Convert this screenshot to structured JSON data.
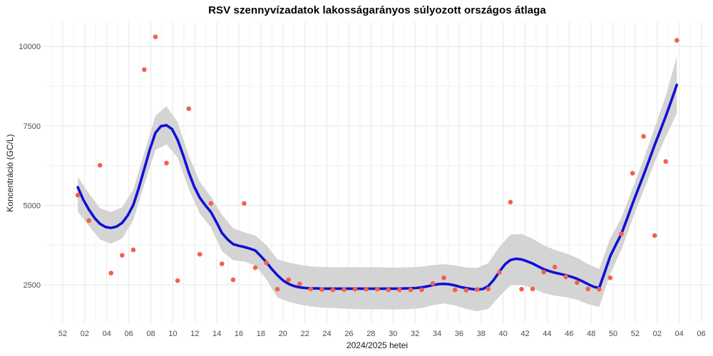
{
  "header": {
    "title": "RSV szennyvízadatok lakosságarányos súlyozott országos átlaga"
  },
  "chart_data": {
    "type": "scatter",
    "title": "RSV szennyvízadatok lakosságarányos súlyozott országos átlaga",
    "xlabel": "2024/2025 hetei",
    "ylabel": "Koncentráció (GC/L)",
    "legend": "none",
    "grid": "on",
    "x_tick_labels": [
      "52",
      "02",
      "04",
      "06",
      "08",
      "10",
      "12",
      "14",
      "16",
      "18",
      "20",
      "22",
      "24",
      "26",
      "28",
      "30",
      "32",
      "34",
      "36",
      "38",
      "40",
      "42",
      "44",
      "46",
      "48",
      "50",
      "52",
      "02",
      "04",
      "06"
    ],
    "y_ticks": [
      2500,
      5000,
      7500,
      10000
    ],
    "y_tick_labels": [
      "2500",
      "5000",
      "7500",
      "10000"
    ],
    "y_minor_ticks": [
      3750,
      6250,
      8750
    ],
    "ylim": [
      1250,
      10750
    ],
    "points": {
      "week_label": [
        "01",
        "02",
        "03",
        "04",
        "05",
        "06",
        "07",
        "08",
        "09",
        "10",
        "11",
        "12",
        "13",
        "14",
        "15",
        "16",
        "17",
        "18",
        "19",
        "20",
        "21",
        "22",
        "23",
        "24",
        "25",
        "26",
        "27",
        "28",
        "29",
        "30",
        "31",
        "32",
        "33",
        "34",
        "35",
        "36",
        "37",
        "38",
        "39",
        "40",
        "41",
        "42",
        "43",
        "44",
        "45",
        "46",
        "47",
        "48",
        "49",
        "50",
        "51",
        "52",
        "01",
        "02",
        "03"
      ],
      "offset": [
        1,
        2,
        3,
        4,
        5,
        6,
        7,
        8,
        9,
        10,
        11,
        12,
        13,
        14,
        15,
        16,
        17,
        18,
        19,
        20,
        21,
        22,
        23,
        24,
        25,
        26,
        27,
        28,
        29,
        30,
        31,
        32,
        33,
        34,
        35,
        36,
        37,
        38,
        39,
        40,
        41,
        42,
        43,
        44,
        45,
        46,
        47,
        48,
        49,
        50,
        51,
        52,
        53,
        54,
        55
      ],
      "value": [
        5320,
        4520,
        6260,
        2870,
        3430,
        3600,
        9270,
        10300,
        6330,
        2630,
        8040,
        3460,
        5060,
        3160,
        2660,
        5060,
        3040,
        3190,
        2360,
        2660,
        2530,
        2370,
        2350,
        2340,
        2350,
        2360,
        2360,
        2360,
        2340,
        2340,
        2340,
        2340,
        2540,
        2720,
        2340,
        2330,
        2350,
        2370,
        2890,
        5100,
        2360,
        2370,
        2900,
        3060,
        2750,
        2570,
        2370,
        2360,
        2720,
        4100,
        6010,
        7170,
        4050,
        6380,
        10190
      ]
    },
    "smooth_line": {
      "offset": [
        1,
        1.5,
        2,
        2.5,
        3,
        3.5,
        4,
        4.5,
        5,
        5.5,
        6,
        6.5,
        7,
        7.5,
        8,
        8.5,
        9,
        9.5,
        10,
        10.5,
        11,
        11.5,
        12,
        12.5,
        13,
        13.5,
        14,
        14.5,
        15,
        15.5,
        16,
        16.5,
        17,
        17.5,
        18,
        18.5,
        19,
        19.5,
        20,
        20.5,
        21,
        21.5,
        22,
        22.5,
        23,
        23.5,
        24,
        24.5,
        25,
        25.5,
        26,
        26.5,
        27,
        27.5,
        28,
        28.5,
        29,
        29.5,
        30,
        30.5,
        31,
        31.5,
        32,
        32.5,
        33,
        33.5,
        34,
        34.5,
        35,
        35.5,
        36,
        36.5,
        37,
        37.5,
        38,
        38.5,
        39,
        39.5,
        40,
        40.5,
        41,
        41.5,
        42,
        42.5,
        43,
        43.5,
        44,
        44.5,
        45,
        45.5,
        46,
        46.5,
        47,
        47.5,
        48,
        48.5,
        49,
        49.5,
        50,
        50.5,
        51,
        51.5,
        52,
        52.5,
        53,
        53.5,
        54,
        54.5,
        55
      ],
      "value": [
        5570,
        5180,
        4870,
        4610,
        4420,
        4320,
        4290,
        4330,
        4450,
        4680,
        5010,
        5540,
        6150,
        6760,
        7280,
        7490,
        7520,
        7400,
        7060,
        6580,
        6040,
        5590,
        5240,
        5000,
        4790,
        4470,
        4130,
        3930,
        3780,
        3730,
        3690,
        3640,
        3580,
        3400,
        3210,
        2990,
        2800,
        2640,
        2530,
        2460,
        2420,
        2400,
        2390,
        2385,
        2380,
        2380,
        2380,
        2380,
        2380,
        2380,
        2380,
        2380,
        2380,
        2380,
        2380,
        2380,
        2380,
        2380,
        2380,
        2385,
        2390,
        2400,
        2420,
        2450,
        2490,
        2520,
        2530,
        2515,
        2480,
        2430,
        2395,
        2370,
        2350,
        2365,
        2460,
        2660,
        2910,
        3140,
        3280,
        3320,
        3300,
        3240,
        3170,
        3080,
        2990,
        2930,
        2880,
        2840,
        2800,
        2750,
        2690,
        2610,
        2520,
        2440,
        2400,
        2900,
        3400,
        3760,
        4100,
        4570,
        5050,
        5500,
        5950,
        6420,
        6900,
        7350,
        7800,
        8290,
        8790
      ]
    },
    "confidence_band": {
      "offset": [
        1,
        2,
        3,
        4,
        5,
        6,
        7,
        8,
        9,
        10,
        11,
        12,
        13,
        14,
        15,
        16,
        17,
        18,
        19,
        20,
        21,
        22,
        23,
        24,
        25,
        26,
        27,
        28,
        29,
        30,
        31,
        32,
        33,
        34,
        35,
        36,
        37,
        38,
        39,
        40,
        41,
        42,
        43,
        44,
        45,
        46,
        47,
        48,
        49,
        50,
        51,
        52,
        53,
        54,
        55
      ],
      "upper": [
        5900,
        5380,
        4910,
        4790,
        4940,
        5490,
        6650,
        7820,
        8120,
        7620,
        6560,
        5740,
        5270,
        4700,
        4280,
        4150,
        4050,
        3750,
        3300,
        3200,
        3130,
        3080,
        3060,
        3050,
        3050,
        3055,
        3050,
        3050,
        3045,
        3045,
        3055,
        3070,
        3120,
        3150,
        3110,
        3045,
        3030,
        3180,
        3690,
        4080,
        4100,
        3950,
        3740,
        3600,
        3490,
        3350,
        3150,
        3000,
        3960,
        4600,
        5530,
        6440,
        7440,
        8440,
        9690
      ],
      "lower": [
        4800,
        4360,
        3930,
        3790,
        3960,
        4530,
        5650,
        6740,
        6920,
        6500,
        5520,
        4740,
        4310,
        3560,
        3280,
        3230,
        3110,
        2670,
        2100,
        1970,
        1880,
        1820,
        1780,
        1770,
        1750,
        1735,
        1730,
        1730,
        1725,
        1725,
        1735,
        1770,
        1860,
        1910,
        1850,
        1745,
        1670,
        1740,
        2130,
        2480,
        2500,
        2390,
        2240,
        2160,
        2110,
        2030,
        1890,
        1800,
        2840,
        3600,
        4570,
        5460,
        6360,
        7160,
        7890
      ]
    },
    "colors": {
      "point": "#f4604c",
      "line": "#1010d8",
      "band": "#d4d4d4",
      "grid_major": "#e6e6e6",
      "grid_minor": "#f1f1f1",
      "tick_text": "#4d4d4d",
      "axis_title_text": "#1a1a1a",
      "title_text": "#000000"
    }
  }
}
